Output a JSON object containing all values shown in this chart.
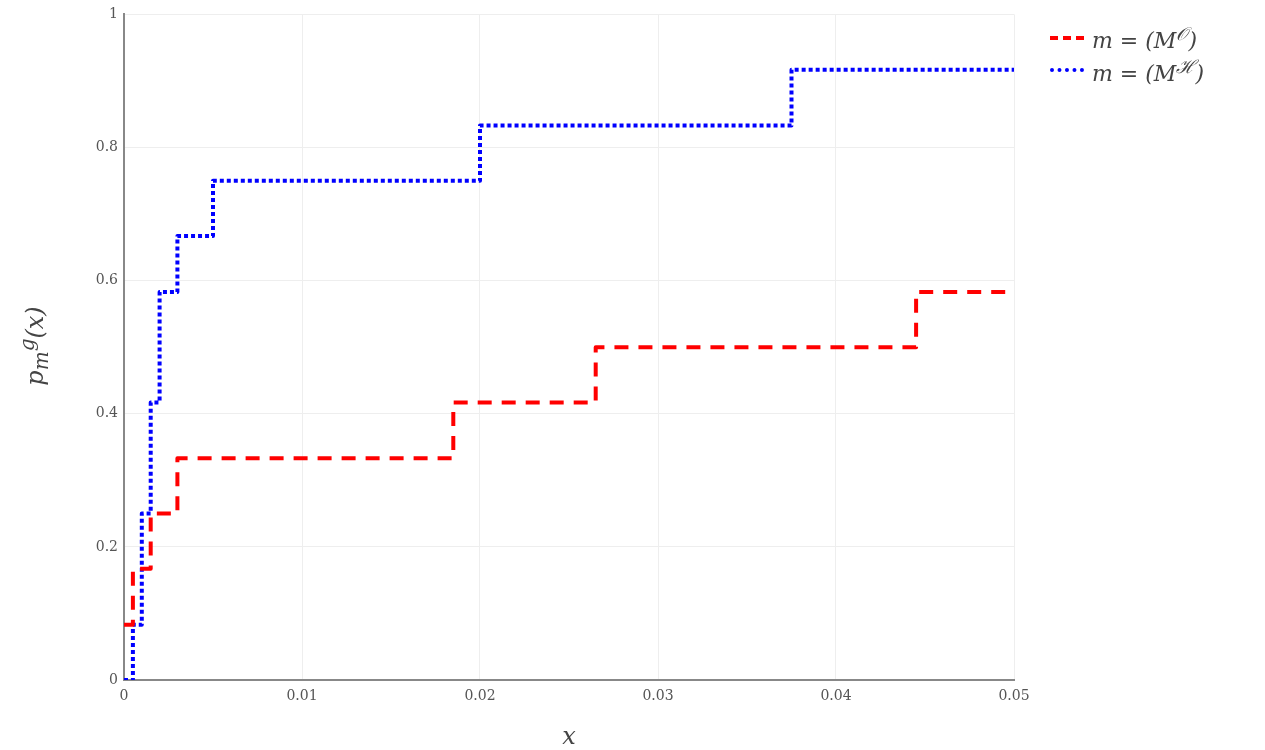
{
  "chart_data": {
    "type": "step",
    "xlabel": "x",
    "ylabel": "p$_{m}$$^{g}$(x)",
    "xlim": [
      0,
      0.05
    ],
    "ylim": [
      0,
      1
    ],
    "xticks": [
      0,
      0.01,
      0.02,
      0.03,
      0.04,
      0.05
    ],
    "yticks": [
      0,
      0.2,
      0.4,
      0.6,
      0.8,
      1
    ],
    "grid": true,
    "legend": "top right",
    "marker": "none",
    "series": [
      {
        "name": "m = (M$^{𝒪}$)",
        "color": "#ff0000",
        "line_style": "dashed",
        "x": [
          0,
          0.0005,
          0.0015,
          0.003,
          0.0185,
          0.0265,
          0.0445,
          0.05
        ],
        "values": [
          0.083,
          0.167,
          0.25,
          0.333,
          0.417,
          0.5,
          0.583,
          0.583
        ]
      },
      {
        "name": "m = (M$^{ℋ}$)",
        "color": "#0000ff",
        "line_style": "dotted",
        "x": [
          0,
          0.0005,
          0.001,
          0.0015,
          0.002,
          0.003,
          0.005,
          0.02,
          0.0375,
          0.05
        ],
        "values": [
          0,
          0.083,
          0.25,
          0.417,
          0.583,
          0.667,
          0.75,
          0.833,
          0.917,
          0.917
        ]
      }
    ]
  }
}
